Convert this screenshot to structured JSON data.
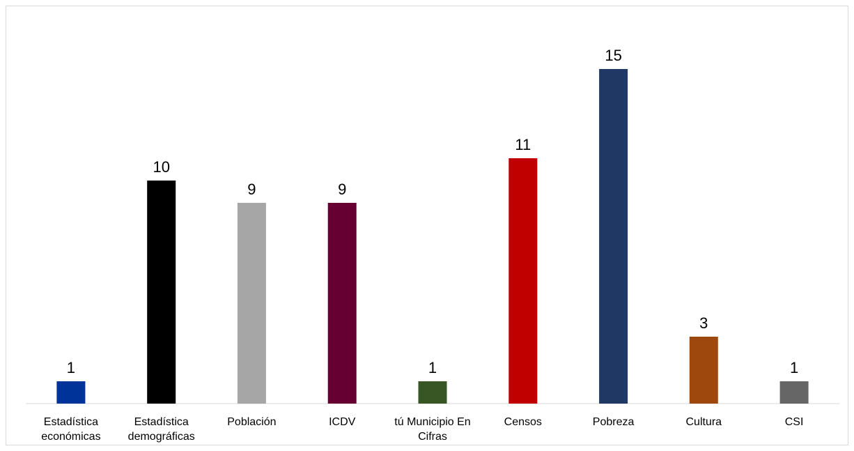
{
  "chart_data": {
    "type": "bar",
    "categories": [
      [
        "Estadística",
        "económicas"
      ],
      [
        "Estadística",
        "demográficas"
      ],
      [
        "Población"
      ],
      [
        "ICDV"
      ],
      [
        "tú Municipio En",
        "Cifras"
      ],
      [
        "Censos"
      ],
      [
        "Pobreza"
      ],
      [
        "Cultura"
      ],
      [
        "CSI"
      ]
    ],
    "values": [
      1,
      10,
      9,
      9,
      1,
      11,
      15,
      3,
      1
    ],
    "colors": [
      "#003399",
      "#000000",
      "#a6a6a6",
      "#660033",
      "#375623",
      "#c00000",
      "#203864",
      "#9e480e",
      "#666666"
    ],
    "ylim": [
      0,
      16
    ],
    "data_labels": true,
    "grid": false,
    "legend": "none"
  }
}
